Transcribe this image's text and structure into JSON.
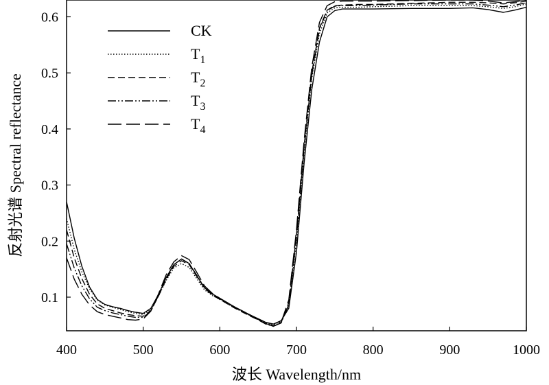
{
  "chart_data": {
    "type": "line",
    "title": "",
    "xlabel": "波长 Wavelength/nm",
    "ylabel": "反射光谱 Spectral reflectance",
    "xlim": [
      400,
      1000
    ],
    "ylim": [
      0.04,
      0.63
    ],
    "xticks": [
      400,
      500,
      600,
      700,
      800,
      900,
      1000
    ],
    "yticks": [
      0.1,
      0.2,
      0.3,
      0.4,
      0.5,
      0.6
    ],
    "yticklabels": [
      "0.1",
      "0.2",
      "0.3",
      "0.4",
      "0.5",
      "0.6"
    ],
    "grid": false,
    "legend_position": "top-left",
    "x": [
      400,
      410,
      420,
      430,
      440,
      450,
      460,
      470,
      480,
      490,
      500,
      510,
      520,
      530,
      540,
      550,
      560,
      570,
      580,
      590,
      600,
      620,
      640,
      660,
      670,
      680,
      690,
      700,
      710,
      720,
      730,
      740,
      750,
      760,
      780,
      800,
      850,
      900,
      930,
      950,
      970,
      985,
      1000
    ],
    "series": [
      {
        "name": "CK",
        "name_main": "CK",
        "name_sub": "",
        "dash": "solid",
        "values": [
          0.27,
          0.205,
          0.155,
          0.118,
          0.096,
          0.087,
          0.083,
          0.08,
          0.076,
          0.073,
          0.071,
          0.08,
          0.105,
          0.135,
          0.158,
          0.168,
          0.16,
          0.138,
          0.117,
          0.106,
          0.098,
          0.082,
          0.068,
          0.055,
          0.052,
          0.058,
          0.08,
          0.18,
          0.34,
          0.47,
          0.555,
          0.6,
          0.611,
          0.614,
          0.614,
          0.614,
          0.615,
          0.615,
          0.616,
          0.613,
          0.608,
          0.612,
          0.617
        ]
      },
      {
        "name": "T1",
        "name_main": "T",
        "name_sub": "1",
        "dash": "dotted",
        "values": [
          0.24,
          0.185,
          0.145,
          0.115,
          0.095,
          0.086,
          0.082,
          0.078,
          0.074,
          0.071,
          0.069,
          0.078,
          0.102,
          0.13,
          0.152,
          0.16,
          0.153,
          0.133,
          0.113,
          0.103,
          0.096,
          0.08,
          0.067,
          0.054,
          0.051,
          0.057,
          0.085,
          0.2,
          0.36,
          0.49,
          0.57,
          0.607,
          0.616,
          0.617,
          0.617,
          0.618,
          0.62,
          0.62,
          0.62,
          0.618,
          0.615,
          0.618,
          0.623
        ]
      },
      {
        "name": "T2",
        "name_main": "T",
        "name_sub": "2",
        "dash": "short-dash",
        "values": [
          0.22,
          0.17,
          0.133,
          0.105,
          0.088,
          0.08,
          0.076,
          0.072,
          0.069,
          0.067,
          0.066,
          0.076,
          0.102,
          0.132,
          0.155,
          0.165,
          0.158,
          0.137,
          0.116,
          0.104,
          0.096,
          0.08,
          0.066,
          0.053,
          0.049,
          0.055,
          0.09,
          0.21,
          0.37,
          0.5,
          0.58,
          0.612,
          0.62,
          0.621,
          0.622,
          0.622,
          0.624,
          0.626,
          0.626,
          0.625,
          0.623,
          0.625,
          0.628
        ]
      },
      {
        "name": "T3",
        "name_main": "T",
        "name_sub": "3",
        "dash": "dash-dot",
        "values": [
          0.195,
          0.152,
          0.12,
          0.097,
          0.082,
          0.076,
          0.072,
          0.069,
          0.066,
          0.064,
          0.064,
          0.075,
          0.103,
          0.135,
          0.158,
          0.168,
          0.16,
          0.139,
          0.117,
          0.105,
          0.097,
          0.081,
          0.067,
          0.052,
          0.048,
          0.054,
          0.087,
          0.205,
          0.365,
          0.495,
          0.578,
          0.611,
          0.619,
          0.62,
          0.62,
          0.621,
          0.623,
          0.623,
          0.623,
          0.621,
          0.618,
          0.621,
          0.625
        ]
      },
      {
        "name": "T4",
        "name_main": "T",
        "name_sub": "4",
        "dash": "long-dash",
        "values": [
          0.17,
          0.132,
          0.105,
          0.086,
          0.074,
          0.069,
          0.066,
          0.063,
          0.06,
          0.059,
          0.061,
          0.075,
          0.106,
          0.14,
          0.163,
          0.174,
          0.167,
          0.144,
          0.12,
          0.107,
          0.098,
          0.082,
          0.068,
          0.053,
          0.048,
          0.055,
          0.095,
          0.22,
          0.38,
          0.51,
          0.59,
          0.62,
          0.627,
          0.628,
          0.628,
          0.628,
          0.629,
          0.63,
          0.63,
          0.628,
          0.625,
          0.627,
          0.63
        ]
      }
    ]
  }
}
